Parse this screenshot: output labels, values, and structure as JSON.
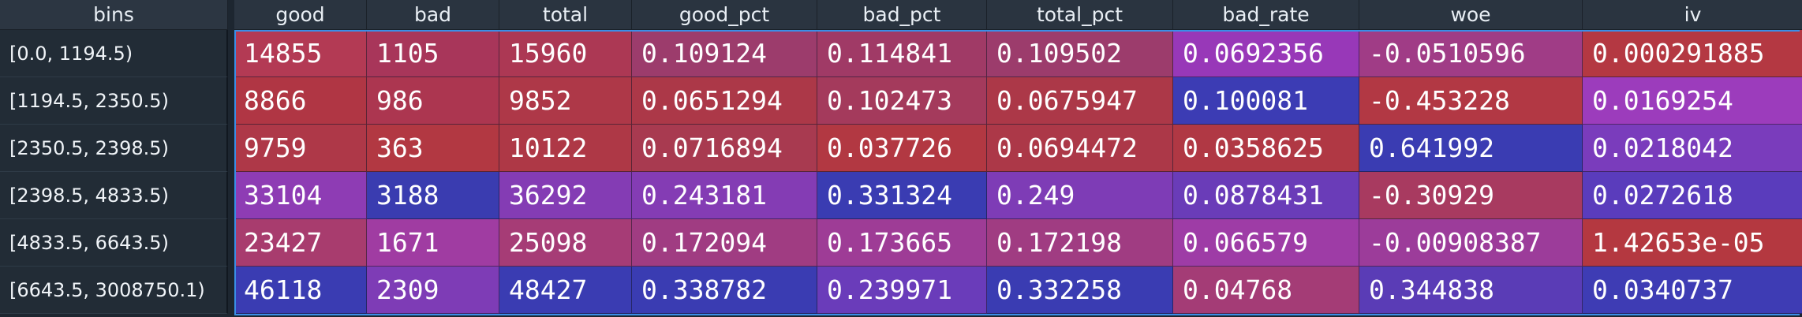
{
  "headers": {
    "bins": "bins",
    "good": "good",
    "bad": "bad",
    "total": "total",
    "good_pct": "good_pct",
    "bad_pct": "bad_pct",
    "total_pct": "total_pct",
    "bad_rate": "bad_rate",
    "woe": "woe",
    "iv": "iv"
  },
  "colors": {
    "red": "#b0384a",
    "crimson": "#a8344a",
    "rose": "#a03c5e",
    "magenta": "#a83e9a",
    "violet": "#8a3cb0",
    "purple": "#7a3cb8",
    "indigo": "#5838b8",
    "blue": "#3a3cb0"
  },
  "rows": [
    {
      "bin": "[0.0, 1194.5)",
      "cells": [
        {
          "value": "14855",
          "color": "#b33a54"
        },
        {
          "value": "1105",
          "color": "#a8365a"
        },
        {
          "value": "15960",
          "color": "#ac3854"
        },
        {
          "value": "0.109124",
          "color": "#9c3c6c"
        },
        {
          "value": "0.114841",
          "color": "#a03a66"
        },
        {
          "value": "0.109502",
          "color": "#9c3c6c"
        },
        {
          "value": "0.0692356",
          "color": "#9838b8"
        },
        {
          "value": "-0.0510596",
          "color": "#a03c86"
        },
        {
          "value": "0.000291885",
          "color": "#b43842"
        }
      ]
    },
    {
      "bin": "[1194.5, 2350.5)",
      "cells": [
        {
          "value": "8866",
          "color": "#b03644"
        },
        {
          "value": "986",
          "color": "#ac3650"
        },
        {
          "value": "9852",
          "color": "#ae3848"
        },
        {
          "value": "0.0651294",
          "color": "#ac3848"
        },
        {
          "value": "0.102473",
          "color": "#a43a5c"
        },
        {
          "value": "0.0675947",
          "color": "#ac3848"
        },
        {
          "value": "0.100081",
          "color": "#3c3cb4"
        },
        {
          "value": "-0.453228",
          "color": "#b23844"
        },
        {
          "value": "0.0169254",
          "color": "#9c3cbc"
        }
      ]
    },
    {
      "bin": "[2350.5, 2398.5)",
      "cells": [
        {
          "value": "9759",
          "color": "#ae3848"
        },
        {
          "value": "363",
          "color": "#b23842"
        },
        {
          "value": "10122",
          "color": "#ae3846"
        },
        {
          "value": "0.0716894",
          "color": "#a83a50"
        },
        {
          "value": "0.037726",
          "color": "#b23842"
        },
        {
          "value": "0.0694472",
          "color": "#ac3848"
        },
        {
          "value": "0.0358625",
          "color": "#b03844"
        },
        {
          "value": "0.641992",
          "color": "#3a3cb2"
        },
        {
          "value": "0.0218042",
          "color": "#7a3cbc"
        }
      ]
    },
    {
      "bin": "[2398.5, 4833.5)",
      "cells": [
        {
          "value": "33104",
          "color": "#8e3cb4"
        },
        {
          "value": "3188",
          "color": "#3a3cb0"
        },
        {
          "value": "36292",
          "color": "#843cb4"
        },
        {
          "value": "0.243181",
          "color": "#843cb4"
        },
        {
          "value": "0.331324",
          "color": "#3a3cb2"
        },
        {
          "value": "0.249",
          "color": "#7e3cb6"
        },
        {
          "value": "0.0878431",
          "color": "#6a3cb8"
        },
        {
          "value": "-0.30929",
          "color": "#a83a60"
        },
        {
          "value": "0.0272618",
          "color": "#5a3cbc"
        }
      ]
    },
    {
      "bin": "[4833.5, 6643.5)",
      "cells": [
        {
          "value": "23427",
          "color": "#a83c6e"
        },
        {
          "value": "1671",
          "color": "#a03ca2"
        },
        {
          "value": "25098",
          "color": "#a63c76"
        },
        {
          "value": "0.172094",
          "color": "#a03c82"
        },
        {
          "value": "0.173665",
          "color": "#9e3c96"
        },
        {
          "value": "0.172198",
          "color": "#a03c82"
        },
        {
          "value": "0.066579",
          "color": "#9e3ca6"
        },
        {
          "value": "-0.00908387",
          "color": "#9c3c9a"
        },
        {
          "value": "1.42653e-05",
          "color": "#b43840"
        }
      ]
    },
    {
      "bin": "[6643.5, 3008750.1)",
      "cells": [
        {
          "value": "46118",
          "color": "#3a3cb2"
        },
        {
          "value": "2309",
          "color": "#7e3cb6"
        },
        {
          "value": "48427",
          "color": "#3a3cb2"
        },
        {
          "value": "0.338782",
          "color": "#3a3cb2"
        },
        {
          "value": "0.239971",
          "color": "#6a3cba"
        },
        {
          "value": "0.332258",
          "color": "#3a3cb2"
        },
        {
          "value": "0.04768",
          "color": "#a43c76"
        },
        {
          "value": "0.344838",
          "color": "#5a3cb6"
        },
        {
          "value": "0.0340737",
          "color": "#3e3cb4"
        }
      ]
    }
  ]
}
